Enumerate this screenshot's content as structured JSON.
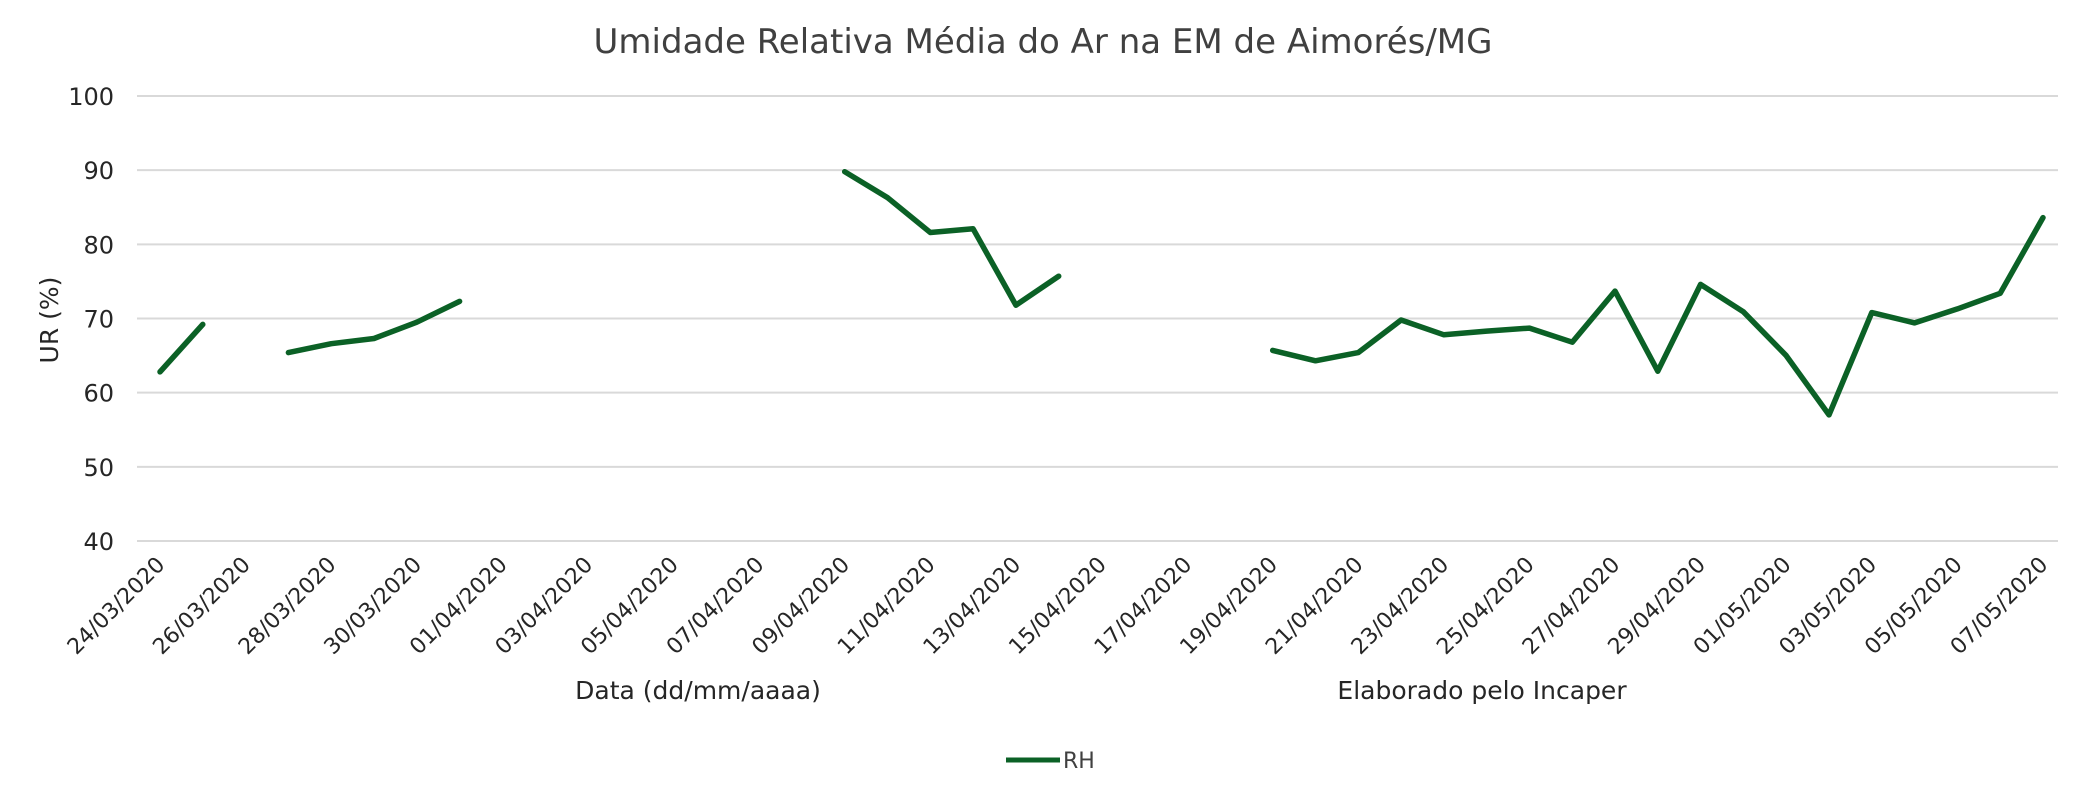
{
  "chart_data": {
    "type": "line",
    "title": "Umidade Relativa Média do Ar na EM de Aimorés/MG",
    "xlabel": "Data (dd/mm/aaaa)",
    "note": "Elaborado pelo Incaper",
    "ylabel": "UR (%)",
    "ylim": [
      40,
      100
    ],
    "yticks": [
      40,
      50,
      60,
      70,
      80,
      90,
      100
    ],
    "grid": true,
    "legend_position": "bottom",
    "x_tick_labels": [
      "24/03/2020",
      "26/03/2020",
      "28/03/2020",
      "30/03/2020",
      "01/04/2020",
      "03/04/2020",
      "05/04/2020",
      "07/04/2020",
      "09/04/2020",
      "11/04/2020",
      "13/04/2020",
      "15/04/2020",
      "17/04/2020",
      "19/04/2020",
      "21/04/2020",
      "23/04/2020",
      "25/04/2020",
      "27/04/2020",
      "29/04/2020",
      "01/05/2020",
      "03/05/2020",
      "05/05/2020",
      "07/05/2020"
    ],
    "x": [
      "24/03/2020",
      "25/03/2020",
      "26/03/2020",
      "27/03/2020",
      "28/03/2020",
      "29/03/2020",
      "30/03/2020",
      "31/03/2020",
      "01/04/2020",
      "02/04/2020",
      "03/04/2020",
      "04/04/2020",
      "05/04/2020",
      "06/04/2020",
      "07/04/2020",
      "08/04/2020",
      "09/04/2020",
      "10/04/2020",
      "11/04/2020",
      "12/04/2020",
      "13/04/2020",
      "14/04/2020",
      "15/04/2020",
      "16/04/2020",
      "17/04/2020",
      "18/04/2020",
      "19/04/2020",
      "20/04/2020",
      "21/04/2020",
      "22/04/2020",
      "23/04/2020",
      "24/04/2020",
      "25/04/2020",
      "26/04/2020",
      "27/04/2020",
      "28/04/2020",
      "29/04/2020",
      "30/04/2020",
      "01/05/2020",
      "02/05/2020",
      "03/05/2020",
      "04/05/2020",
      "05/05/2020",
      "06/05/2020",
      "07/05/2020"
    ],
    "series": [
      {
        "name": "RH",
        "color": "#0b6126",
        "values": [
          62.8,
          69.2,
          null,
          65.4,
          66.6,
          67.3,
          69.5,
          72.3,
          null,
          null,
          null,
          null,
          null,
          null,
          null,
          null,
          89.8,
          86.3,
          81.6,
          82.1,
          71.8,
          75.7,
          null,
          null,
          null,
          null,
          65.7,
          64.3,
          65.4,
          69.8,
          67.8,
          68.3,
          68.7,
          66.8,
          73.7,
          62.9,
          74.6,
          70.9,
          65.0,
          57.0,
          70.8,
          69.4,
          71.3,
          73.4,
          83.6
        ]
      }
    ]
  }
}
